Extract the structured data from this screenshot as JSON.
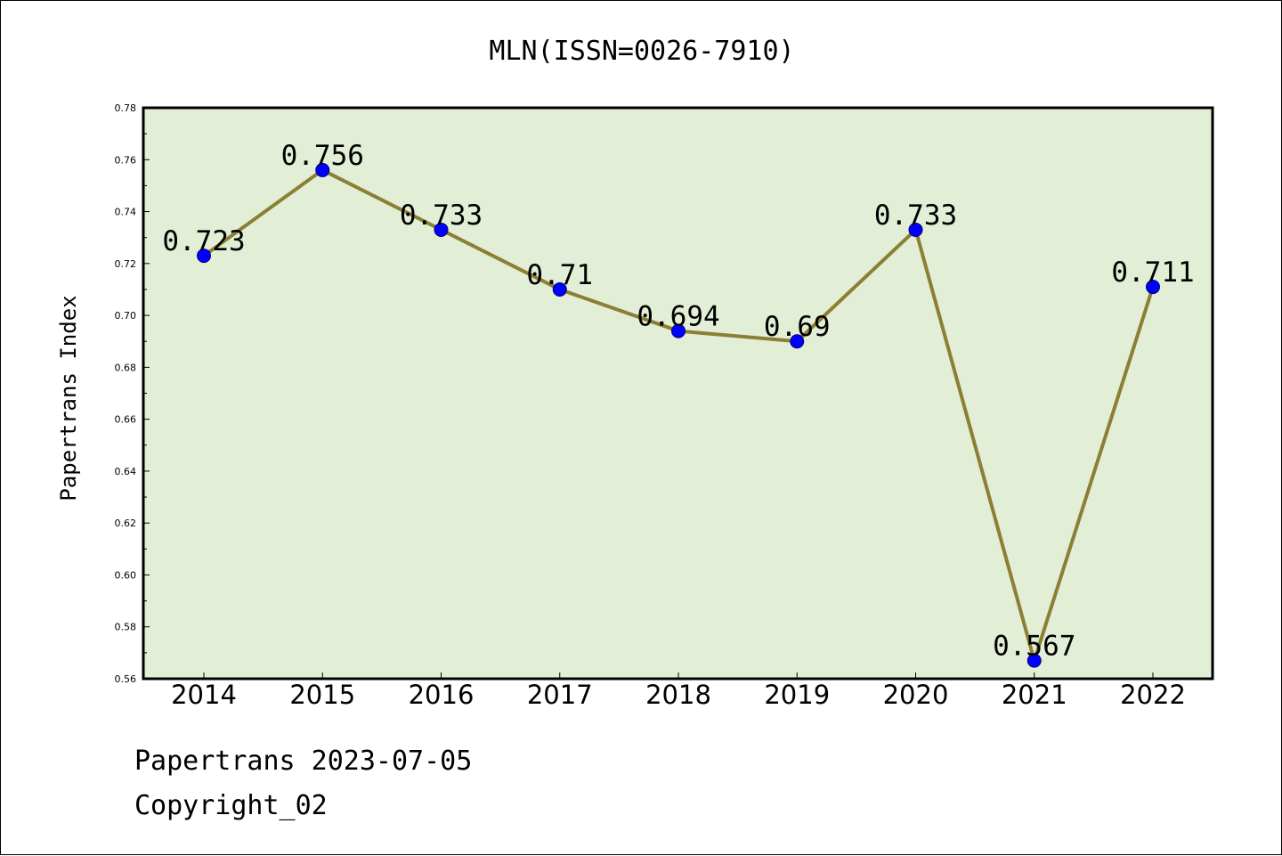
{
  "chart_data": {
    "type": "line",
    "title": "MLN(ISSN=0026-7910)",
    "ylabel": "Papertrans Index",
    "xlabel": "",
    "categories": [
      "2014",
      "2015",
      "2016",
      "2017",
      "2018",
      "2019",
      "2020",
      "2021",
      "2022"
    ],
    "values": [
      0.723,
      0.756,
      0.733,
      0.71,
      0.694,
      0.69,
      0.733,
      0.567,
      0.711
    ],
    "data_labels": [
      "0.723",
      "0.756",
      "0.733",
      "0.71",
      "0.694",
      "0.69",
      "0.733",
      "0.567",
      "0.711"
    ],
    "ylim": [
      0.56,
      0.78
    ],
    "yticks": [
      "0.56",
      "0.58",
      "0.60",
      "0.62",
      "0.64",
      "0.66",
      "0.68",
      "0.70",
      "0.72",
      "0.74",
      "0.76",
      "0.78"
    ],
    "grid": false,
    "colors": {
      "plot_background": "#e2efd6",
      "line": "#8b7f35",
      "marker": "#0000ff"
    }
  },
  "footer": {
    "line1": "Papertrans 2023-07-05",
    "line2": "Copyright_02"
  }
}
